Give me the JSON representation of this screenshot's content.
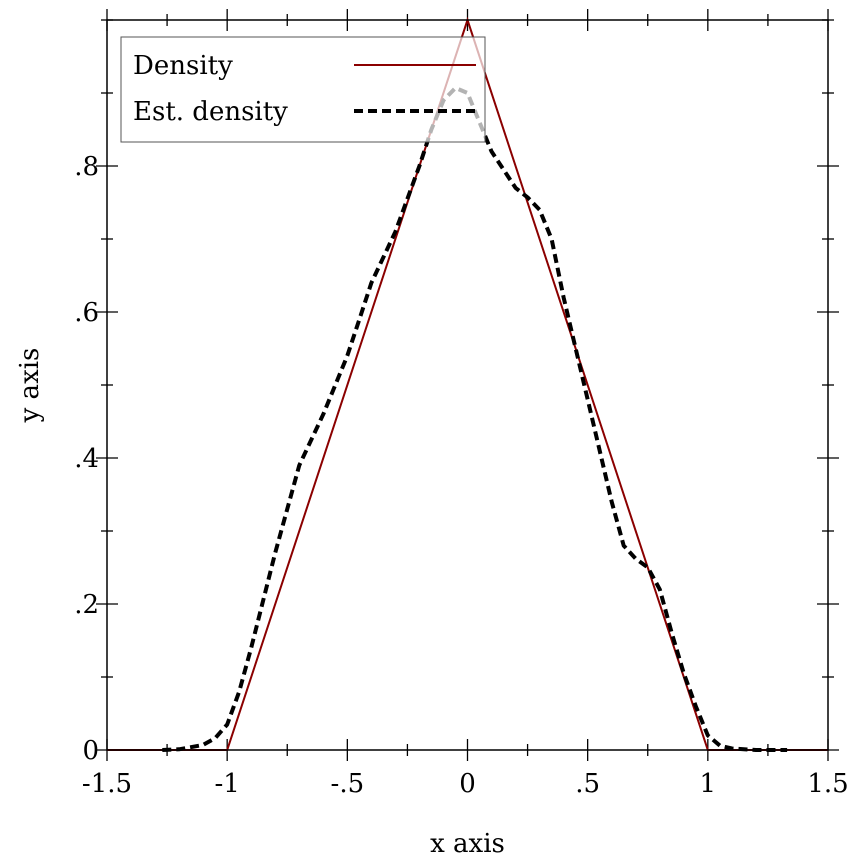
{
  "chart_data": {
    "type": "line",
    "xlabel": "x axis",
    "ylabel": "y axis",
    "xlim": [
      -1.5,
      1.5
    ],
    "ylim": [
      0,
      1
    ],
    "x_ticks": [
      {
        "value": -1.5,
        "label": "-1.5"
      },
      {
        "value": -1,
        "label": "-1"
      },
      {
        "value": -0.5,
        "label": "-.5"
      },
      {
        "value": 0,
        "label": "0"
      },
      {
        "value": 0.5,
        "label": ".5"
      },
      {
        "value": 1,
        "label": "1"
      },
      {
        "value": 1.5,
        "label": "1.5"
      }
    ],
    "y_ticks": [
      {
        "value": 0,
        "label": "0"
      },
      {
        "value": 0.2,
        "label": ".2"
      },
      {
        "value": 0.4,
        "label": ".4"
      },
      {
        "value": 0.6,
        "label": ".6"
      },
      {
        "value": 0.8,
        "label": ".8"
      }
    ],
    "x_minor_step": 0.25,
    "y_minor_step": 0.1,
    "legend_position": "top-left",
    "series": [
      {
        "name": "Density",
        "color": "#8b0000",
        "style": "solid",
        "x": [
          -1.5,
          -1,
          0,
          1,
          1.5
        ],
        "y": [
          0,
          0,
          1,
          0,
          0
        ]
      },
      {
        "name": "Est. density",
        "color": "#000000",
        "style": "dashed",
        "x": [
          -1.27,
          -1.2,
          -1.1,
          -1.05,
          -1.0,
          -0.95,
          -0.9,
          -0.8,
          -0.7,
          -0.6,
          -0.5,
          -0.45,
          -0.4,
          -0.3,
          -0.2,
          -0.15,
          -0.1,
          -0.05,
          0.0,
          0.05,
          0.1,
          0.15,
          0.2,
          0.25,
          0.3,
          0.35,
          0.4,
          0.5,
          0.6,
          0.65,
          0.7,
          0.75,
          0.8,
          0.85,
          0.9,
          0.95,
          1.0,
          1.05,
          1.1,
          1.2,
          1.33
        ],
        "y": [
          0.0,
          0.001,
          0.007,
          0.016,
          0.035,
          0.08,
          0.14,
          0.27,
          0.39,
          0.46,
          0.54,
          0.59,
          0.64,
          0.71,
          0.8,
          0.85,
          0.89,
          0.907,
          0.9,
          0.86,
          0.82,
          0.795,
          0.77,
          0.757,
          0.74,
          0.7,
          0.62,
          0.48,
          0.34,
          0.28,
          0.262,
          0.25,
          0.22,
          0.16,
          0.105,
          0.06,
          0.02,
          0.006,
          0.002,
          0.0,
          0.0
        ]
      }
    ]
  }
}
